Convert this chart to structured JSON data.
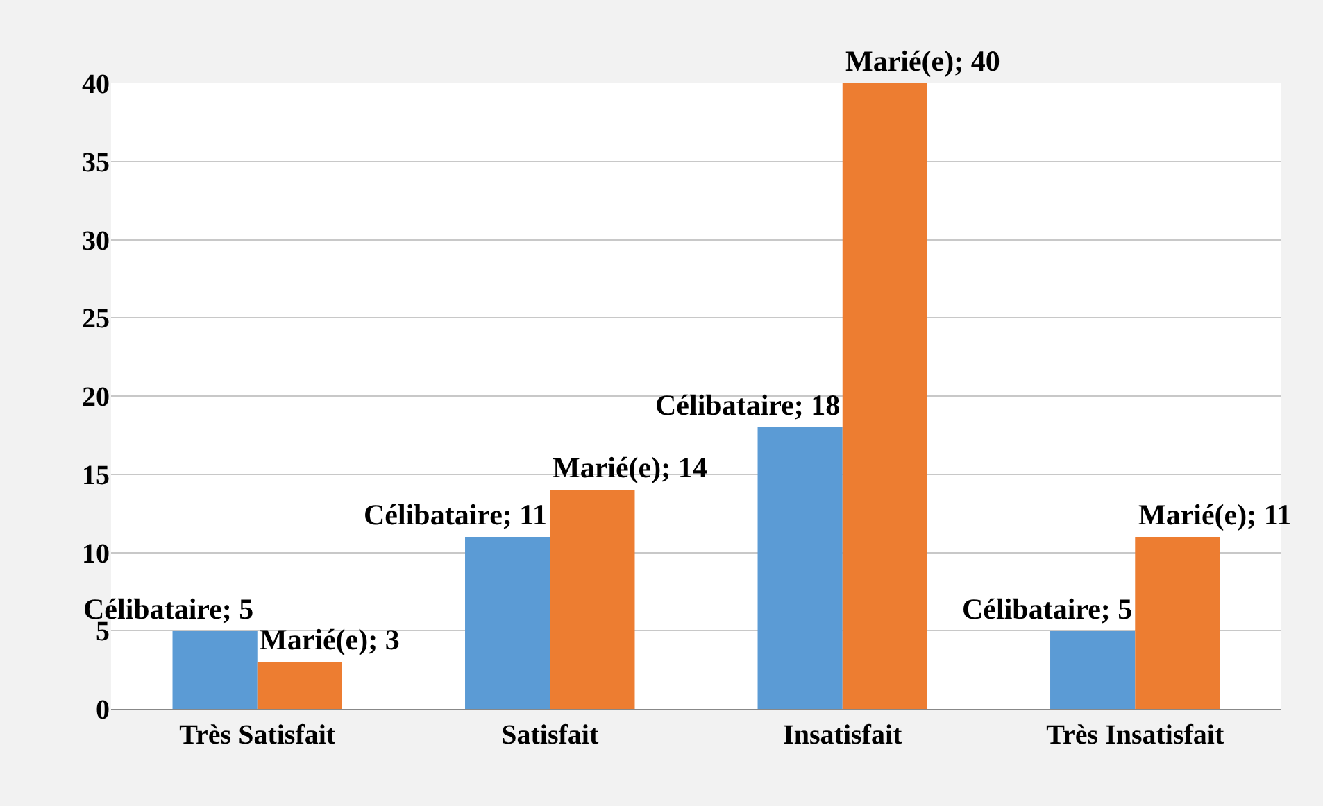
{
  "chart_data": {
    "type": "bar",
    "categories": [
      "Très Satisfait",
      "Satisfait",
      "Insatisfait",
      "Très Insatisfait"
    ],
    "series": [
      {
        "color": "#5b9bd5",
        "values": [
          5,
          11,
          18,
          5
        ],
        "value_labels": [
          "Célibataire; 5",
          "Célibataire; 11",
          "Célibataire; 18",
          "Célibataire; 5"
        ]
      },
      {
        "color": "#ed7d31",
        "values": [
          3,
          14,
          40,
          11
        ],
        "value_labels": [
          "Marié(e); 3",
          "Marié(e); 14",
          "Marié(e); 40",
          "Marié(e); 11"
        ]
      }
    ],
    "ylim": [
      0,
      40
    ],
    "yticks": [
      0,
      5,
      10,
      15,
      20,
      25,
      30,
      35,
      40
    ],
    "grid": "y",
    "legend": false
  }
}
